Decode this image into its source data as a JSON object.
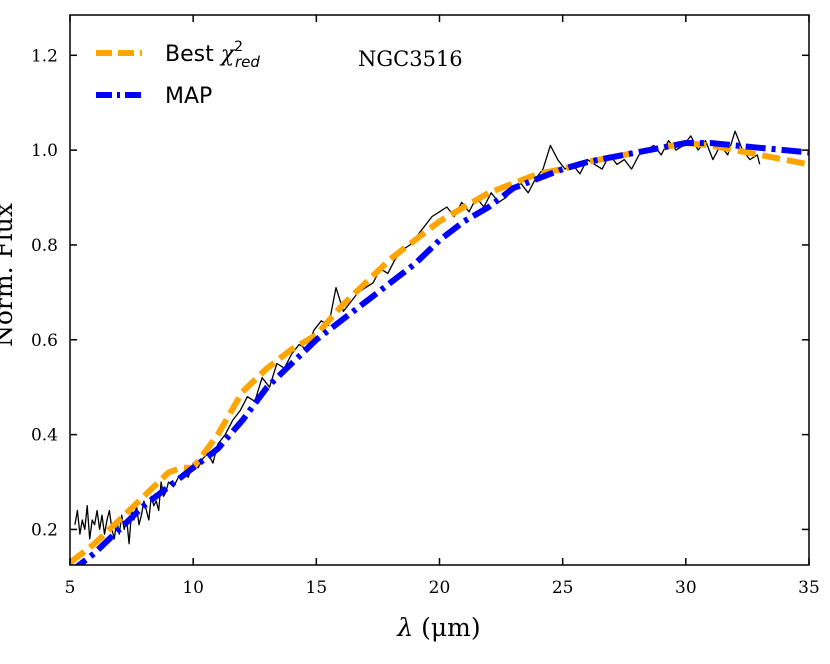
{
  "chart_data": {
    "type": "line",
    "title": "",
    "annotation": "NGC3516",
    "xlabel": "λ (μm)",
    "xlabel_parts": {
      "symbol": "λ",
      "unit": "(μm)"
    },
    "ylabel": "Norm. Flux",
    "xlim": [
      5,
      35
    ],
    "ylim": [
      0.125,
      1.285
    ],
    "xticks": [
      5,
      10,
      15,
      20,
      25,
      30,
      35
    ],
    "yticks": [
      0.2,
      0.4,
      0.6,
      0.8,
      1.0,
      1.2
    ],
    "xtick_labels": [
      "5",
      "10",
      "15",
      "20",
      "25",
      "30",
      "35"
    ],
    "ytick_labels": [
      "0.2",
      "0.4",
      "0.6",
      "0.8",
      "1.0",
      "1.2"
    ],
    "grid": false,
    "legend_position": "top-left",
    "legend": [
      {
        "series": "best",
        "label": "Best",
        "math_symbol": "χ",
        "superscript": "2",
        "subscript": "red"
      },
      {
        "series": "map",
        "label": "MAP"
      }
    ],
    "series": [
      {
        "key": "observed",
        "color": "#000000",
        "style": "solid",
        "x": [
          5.2,
          5.3,
          5.4,
          5.5,
          5.6,
          5.7,
          5.8,
          5.9,
          6.0,
          6.1,
          6.2,
          6.3,
          6.4,
          6.5,
          6.6,
          6.7,
          6.8,
          6.9,
          7.0,
          7.1,
          7.2,
          7.3,
          7.4,
          7.5,
          7.6,
          7.7,
          7.8,
          7.9,
          8.0,
          8.1,
          8.2,
          8.3,
          8.4,
          8.5,
          8.6,
          8.7,
          8.8,
          8.9,
          9.0,
          9.2,
          9.4,
          9.6,
          9.8,
          10.0,
          10.2,
          10.4,
          10.6,
          10.8,
          11.0,
          11.3,
          11.6,
          11.9,
          12.2,
          12.5,
          12.8,
          13.1,
          13.4,
          13.7,
          14.0,
          14.3,
          14.6,
          14.9,
          15.2,
          15.5,
          15.8,
          16.1,
          16.4,
          16.7,
          17.0,
          17.3,
          17.6,
          17.9,
          18.2,
          18.5,
          18.8,
          19.1,
          19.4,
          19.7,
          20.0,
          20.3,
          20.6,
          20.9,
          21.2,
          21.5,
          21.8,
          22.1,
          22.4,
          22.7,
          23.0,
          23.3,
          23.6,
          23.9,
          24.2,
          24.5,
          24.8,
          25.1,
          25.4,
          25.7,
          26.0,
          26.3,
          26.6,
          26.9,
          27.2,
          27.5,
          27.8,
          28.1,
          28.4,
          28.7,
          29.0,
          29.3,
          29.6,
          29.9,
          30.2,
          30.5,
          30.8,
          31.1,
          31.4,
          31.7,
          32.0,
          32.3,
          32.6,
          32.9,
          33.0
        ],
        "y": [
          0.21,
          0.24,
          0.19,
          0.22,
          0.2,
          0.25,
          0.18,
          0.22,
          0.21,
          0.24,
          0.2,
          0.23,
          0.19,
          0.22,
          0.24,
          0.2,
          0.18,
          0.22,
          0.19,
          0.23,
          0.2,
          0.22,
          0.17,
          0.24,
          0.22,
          0.25,
          0.21,
          0.23,
          0.26,
          0.24,
          0.22,
          0.27,
          0.25,
          0.26,
          0.24,
          0.3,
          0.27,
          0.28,
          0.3,
          0.29,
          0.31,
          0.32,
          0.31,
          0.34,
          0.33,
          0.35,
          0.36,
          0.34,
          0.38,
          0.4,
          0.43,
          0.45,
          0.48,
          0.47,
          0.52,
          0.5,
          0.55,
          0.54,
          0.57,
          0.59,
          0.58,
          0.62,
          0.64,
          0.63,
          0.71,
          0.66,
          0.68,
          0.7,
          0.71,
          0.72,
          0.75,
          0.74,
          0.77,
          0.79,
          0.8,
          0.82,
          0.84,
          0.86,
          0.87,
          0.88,
          0.86,
          0.89,
          0.87,
          0.9,
          0.88,
          0.91,
          0.89,
          0.9,
          0.92,
          0.93,
          0.91,
          0.94,
          0.96,
          1.01,
          0.98,
          0.96,
          0.97,
          0.95,
          0.98,
          0.97,
          0.96,
          0.99,
          0.97,
          0.98,
          0.96,
          0.99,
          1.0,
          1.01,
          0.99,
          1.02,
          1.0,
          1.01,
          1.03,
          1.0,
          1.02,
          0.98,
          1.01,
          0.99,
          1.04,
          1.0,
          0.98,
          0.99,
          0.97
        ]
      },
      {
        "key": "best",
        "name": "Best χ²red",
        "color": "#FFA500",
        "style": "dashed",
        "x": [
          5.0,
          6.0,
          7.0,
          8.0,
          9.0,
          9.5,
          10.0,
          11.0,
          12.0,
          13.0,
          14.0,
          15.0,
          16.0,
          17.0,
          18.0,
          19.0,
          20.0,
          21.0,
          22.0,
          23.0,
          24.0,
          25.0,
          26.0,
          27.0,
          28.0,
          29.0,
          30.0,
          31.0,
          32.0,
          33.0,
          34.0,
          35.0
        ],
        "y": [
          0.13,
          0.17,
          0.22,
          0.27,
          0.32,
          0.33,
          0.33,
          0.4,
          0.49,
          0.54,
          0.58,
          0.61,
          0.67,
          0.72,
          0.77,
          0.81,
          0.85,
          0.88,
          0.91,
          0.93,
          0.95,
          0.96,
          0.975,
          0.985,
          0.995,
          1.005,
          1.015,
          1.01,
          1.0,
          0.99,
          0.98,
          0.97
        ]
      },
      {
        "key": "map",
        "name": "MAP",
        "color": "#0000FF",
        "style": "dashdot",
        "x": [
          5.0,
          6.0,
          7.0,
          8.0,
          9.0,
          10.0,
          11.0,
          12.0,
          13.0,
          14.0,
          15.0,
          16.0,
          17.0,
          18.0,
          19.0,
          20.0,
          21.0,
          22.0,
          23.0,
          24.0,
          25.0,
          26.0,
          27.0,
          28.0,
          29.0,
          30.0,
          31.0,
          32.0,
          33.0,
          34.0,
          35.0
        ],
        "y": [
          0.11,
          0.15,
          0.2,
          0.25,
          0.29,
          0.33,
          0.37,
          0.43,
          0.5,
          0.55,
          0.6,
          0.64,
          0.68,
          0.72,
          0.76,
          0.81,
          0.85,
          0.88,
          0.92,
          0.94,
          0.96,
          0.975,
          0.985,
          0.995,
          1.005,
          1.015,
          1.015,
          1.01,
          1.005,
          1.0,
          0.995
        ]
      }
    ]
  }
}
